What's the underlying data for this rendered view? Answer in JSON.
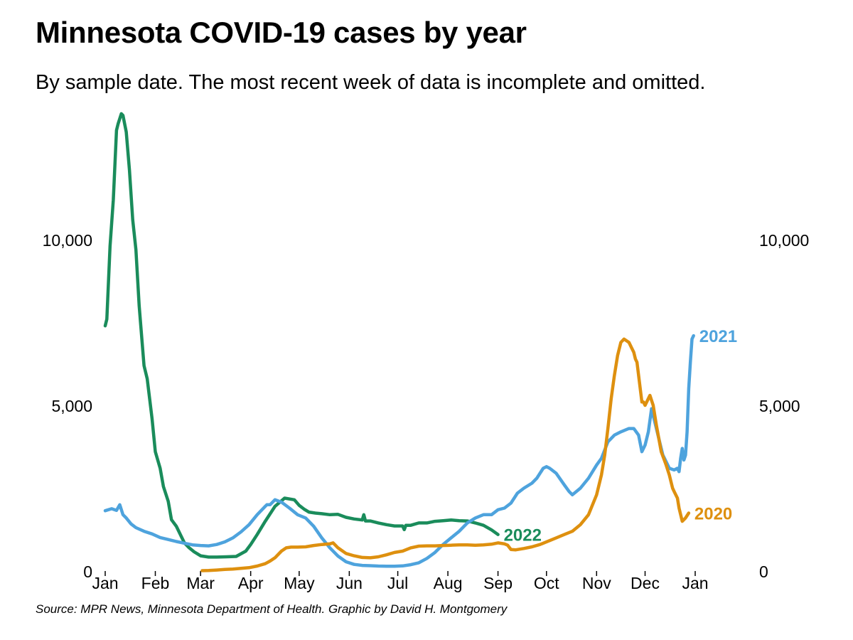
{
  "title": "Minnesota COVID-19 cases by year",
  "subtitle": "By sample date. The most recent week of data is incomplete and omitted.",
  "source": "Source: MPR News, Minnesota Department of Health. Graphic by David H. Montgomery",
  "chart_data": {
    "type": "line",
    "title": "Minnesota COVID-19 cases by year",
    "xlabel": "",
    "ylabel": "",
    "xlim": [
      1,
      366
    ],
    "ylim": [
      0,
      14000
    ],
    "y_ticks": [
      0,
      5000,
      10000
    ],
    "y_tick_labels": [
      "0",
      "5,000",
      "10,000"
    ],
    "y_axis_sides": [
      "left",
      "right"
    ],
    "x_ticks": [
      1,
      32,
      60,
      91,
      121,
      152,
      182,
      213,
      244,
      274,
      305,
      335,
      366
    ],
    "x_tick_labels": [
      "Jan",
      "Feb",
      "Mar",
      "Apr",
      "May",
      "Jun",
      "Jul",
      "Aug",
      "Sep",
      "Oct",
      "Nov",
      "Dec",
      "Jan"
    ],
    "x_unit": "day of year",
    "grid": false,
    "legend": "direct labels at line ends",
    "series": [
      {
        "name": "2022",
        "color": "#1a8c5b",
        "x": [
          1,
          2,
          4,
          6,
          8,
          9,
          11,
          12,
          13,
          14,
          16,
          18,
          20,
          22,
          25,
          27,
          30,
          32,
          35,
          37,
          40,
          42,
          45,
          48,
          50,
          53,
          56,
          60,
          65,
          70,
          76,
          82,
          88,
          91,
          95,
          100,
          106,
          112,
          118,
          121,
          124,
          127,
          131,
          135,
          140,
          145,
          150,
          155,
          160,
          161,
          162,
          165,
          170,
          175,
          180,
          185,
          186,
          187,
          190,
          195,
          200,
          205,
          210,
          215,
          220,
          225,
          230,
          235,
          240,
          244
        ],
        "y": [
          7400,
          7600,
          9800,
          11200,
          13300,
          13500,
          13800,
          13750,
          13500,
          13250,
          12100,
          10600,
          9700,
          8000,
          6200,
          5800,
          4600,
          3600,
          3100,
          2550,
          2100,
          1550,
          1350,
          1050,
          850,
          700,
          580,
          460,
          420,
          420,
          430,
          440,
          600,
          800,
          1100,
          1500,
          1950,
          2200,
          2150,
          1980,
          1870,
          1780,
          1750,
          1730,
          1700,
          1710,
          1620,
          1570,
          1540,
          1700,
          1510,
          1510,
          1450,
          1400,
          1360,
          1360,
          1250,
          1380,
          1380,
          1450,
          1450,
          1500,
          1520,
          1540,
          1520,
          1510,
          1450,
          1380,
          1240,
          1100
        ]
      },
      {
        "name": "2021",
        "color": "#4ea3dd",
        "x": [
          1,
          5,
          8,
          10,
          12,
          14,
          17,
          20,
          25,
          30,
          35,
          40,
          45,
          50,
          55,
          60,
          65,
          70,
          75,
          80,
          85,
          90,
          95,
          100,
          101,
          103,
          106,
          110,
          115,
          120,
          125,
          130,
          135,
          140,
          145,
          150,
          155,
          160,
          165,
          170,
          175,
          180,
          185,
          190,
          195,
          200,
          205,
          210,
          215,
          220,
          225,
          230,
          235,
          240,
          244,
          248,
          252,
          256,
          260,
          265,
          268,
          272,
          274,
          276,
          280,
          285,
          288,
          290,
          295,
          300,
          305,
          308,
          312,
          316,
          320,
          325,
          328,
          331,
          333,
          335,
          337,
          339,
          342,
          346,
          348,
          350,
          353,
          355,
          356,
          357,
          358,
          359,
          360,
          361,
          362,
          363,
          364,
          365
        ],
        "y": [
          1820,
          1880,
          1830,
          2000,
          1700,
          1600,
          1420,
          1310,
          1200,
          1120,
          1010,
          950,
          890,
          840,
          790,
          770,
          760,
          800,
          880,
          1000,
          1180,
          1400,
          1700,
          1950,
          2000,
          2000,
          2150,
          2080,
          1900,
          1700,
          1600,
          1350,
          1000,
          700,
          450,
          280,
          200,
          170,
          160,
          150,
          145,
          145,
          155,
          190,
          250,
          380,
          560,
          800,
          1000,
          1200,
          1450,
          1600,
          1700,
          1700,
          1850,
          1900,
          2050,
          2350,
          2500,
          2650,
          2800,
          3100,
          3150,
          3100,
          2950,
          2600,
          2400,
          2300,
          2500,
          2800,
          3200,
          3400,
          3900,
          4100,
          4200,
          4300,
          4300,
          4100,
          3600,
          3800,
          4200,
          4900,
          4300,
          3500,
          3300,
          3100,
          3050,
          3100,
          3000,
          3400,
          3700,
          3350,
          3500,
          4200,
          5500,
          6300,
          7000,
          7100
        ]
      },
      {
        "name": "2020",
        "color": "#de900f",
        "x": [
          61,
          65,
          70,
          75,
          80,
          85,
          90,
          95,
          100,
          103,
          106,
          110,
          113,
          116,
          120,
          125,
          130,
          135,
          140,
          142,
          145,
          150,
          155,
          160,
          165,
          170,
          175,
          180,
          185,
          190,
          195,
          200,
          205,
          210,
          215,
          220,
          225,
          230,
          235,
          240,
          244,
          248,
          250,
          252,
          255,
          260,
          265,
          270,
          275,
          280,
          285,
          290,
          295,
          300,
          305,
          308,
          310,
          312,
          314,
          316,
          318,
          320,
          322,
          325,
          328,
          329,
          330,
          333,
          334,
          335,
          338,
          340,
          342,
          345,
          348,
          350,
          352,
          353,
          355,
          356,
          358,
          360,
          362
        ],
        "y": [
          10,
          15,
          30,
          50,
          60,
          80,
          100,
          150,
          220,
          300,
          400,
          600,
          700,
          720,
          720,
          730,
          770,
          800,
          820,
          850,
          700,
          530,
          460,
          410,
          400,
          430,
          490,
          560,
          600,
          700,
          750,
          760,
          760,
          770,
          780,
          790,
          790,
          780,
          790,
          810,
          850,
          820,
          780,
          650,
          640,
          680,
          730,
          800,
          900,
          1000,
          1100,
          1200,
          1400,
          1700,
          2300,
          2900,
          3500,
          4300,
          5200,
          5900,
          6500,
          6900,
          7000,
          6900,
          6600,
          6400,
          6300,
          5100,
          5100,
          5000,
          5300,
          5000,
          4400,
          3600,
          3200,
          2900,
          2500,
          2400,
          2200,
          1900,
          1500,
          1600,
          1750
        ]
      }
    ]
  }
}
